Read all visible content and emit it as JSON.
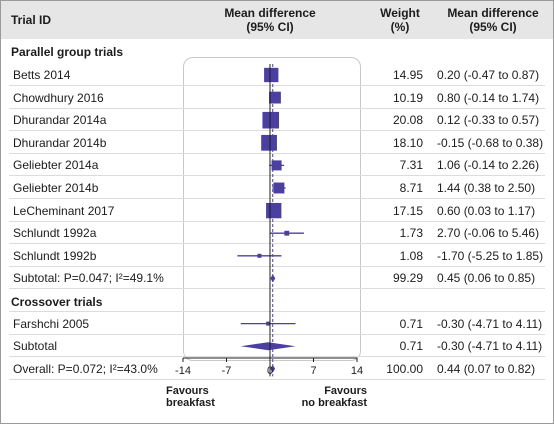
{
  "header": {
    "trial_id": "Trial ID",
    "md_line1": "Mean difference",
    "md_line2": "(95% CI)",
    "weight_line1": "Weight",
    "weight_line2": "(%)",
    "mdr_line1": "Mean difference",
    "mdr_line2": "(95% CI)"
  },
  "sections": {
    "parallel": "Parallel group trials",
    "crossover": "Crossover trials"
  },
  "favours": {
    "left_line1": "Favours",
    "left_line2": "breakfast",
    "right_line1": "Favours",
    "right_line2": "no breakfast"
  },
  "chart_data": {
    "type": "forest",
    "xlim": [
      -14,
      14
    ],
    "xticks": [
      "-14",
      "-7",
      "0",
      "7",
      "14"
    ],
    "pooled_effect": 0.44,
    "colors": {
      "marker": "#4b3fa0",
      "axis": "#1c1c1c"
    },
    "rows": [
      {
        "kind": "study",
        "label": "Betts 2014",
        "weight": "14.95",
        "ci_text": "0.20 (-0.47 to 0.87)",
        "est": 0.2,
        "lo": -0.47,
        "hi": 0.87,
        "w": 14.95
      },
      {
        "kind": "study",
        "label": "Chowdhury 2016",
        "weight": "10.19",
        "ci_text": "0.80 (-0.14 to 1.74)",
        "est": 0.8,
        "lo": -0.14,
        "hi": 1.74,
        "w": 10.19
      },
      {
        "kind": "study",
        "label": "Dhurandar 2014a",
        "weight": "20.08",
        "ci_text": "0.12 (-0.33 to 0.57)",
        "est": 0.12,
        "lo": -0.33,
        "hi": 0.57,
        "w": 20.08
      },
      {
        "kind": "study",
        "label": "Dhurandar 2014b",
        "weight": "18.10",
        "ci_text": "-0.15 (-0.68 to 0.38)",
        "est": -0.15,
        "lo": -0.68,
        "hi": 0.38,
        "w": 18.1
      },
      {
        "kind": "study",
        "label": "Geliebter 2014a",
        "weight": "7.31",
        "ci_text": "1.06 (-0.14 to 2.26)",
        "est": 1.06,
        "lo": -0.14,
        "hi": 2.26,
        "w": 7.31
      },
      {
        "kind": "study",
        "label": "Geliebter 2014b",
        "weight": "8.71",
        "ci_text": "1.44 (0.38 to 2.50)",
        "est": 1.44,
        "lo": 0.38,
        "hi": 2.5,
        "w": 8.71
      },
      {
        "kind": "study",
        "label": "LeCheminant 2017",
        "weight": "17.15",
        "ci_text": "0.60 (0.03 to 1.17)",
        "est": 0.6,
        "lo": 0.03,
        "hi": 1.17,
        "w": 17.15
      },
      {
        "kind": "study",
        "label": "Schlundt 1992a",
        "weight": "1.73",
        "ci_text": "2.70 (-0.06 to 5.46)",
        "est": 2.7,
        "lo": -0.06,
        "hi": 5.46,
        "w": 1.73
      },
      {
        "kind": "study",
        "label": "Schlundt 1992b",
        "weight": "1.08",
        "ci_text": "-1.70 (-5.25 to 1.85)",
        "est": -1.7,
        "lo": -5.25,
        "hi": 1.85,
        "w": 1.08
      },
      {
        "kind": "subtotal",
        "label": "Subtotal: P=0.047; I²=49.1%",
        "weight": "99.29",
        "ci_text": "0.45 (0.06 to 0.85)",
        "est": 0.45,
        "lo": 0.06,
        "hi": 0.85
      },
      {
        "kind": "section",
        "label": "Crossover trials"
      },
      {
        "kind": "study",
        "label": "Farshchi 2005",
        "weight": "0.71",
        "ci_text": "-0.30 (-4.71 to 4.11)",
        "est": -0.3,
        "lo": -4.71,
        "hi": 4.11,
        "w": 0.71
      },
      {
        "kind": "subtotal",
        "label": "Subtotal",
        "weight": "0.71",
        "ci_text": "-0.30 (-4.71 to 4.11)",
        "est": -0.3,
        "lo": -4.71,
        "hi": 4.11
      },
      {
        "kind": "overall",
        "label": "Overall: P=0.072; I²=43.0%",
        "weight": "100.00",
        "ci_text": "0.44 (0.07 to 0.82)",
        "est": 0.44,
        "lo": 0.07,
        "hi": 0.82
      }
    ]
  }
}
